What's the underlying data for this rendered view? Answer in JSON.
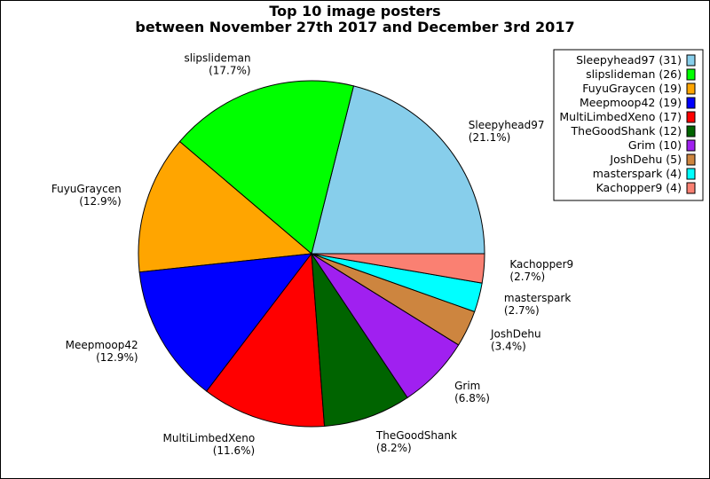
{
  "chart_data": {
    "type": "pie",
    "title": "Top 10 image posters",
    "subtitle": "between November 27th 2017 and December 3rd 2017",
    "slices": [
      {
        "name": "Sleepyhead97",
        "count": 31,
        "percent_label": "(21.1%)",
        "legend_label": "Sleepyhead97 (31)",
        "color": "#87ceeb"
      },
      {
        "name": "slipslideman",
        "count": 26,
        "percent_label": "(17.7%)",
        "legend_label": "slipslideman (26)",
        "color": "#00ff00"
      },
      {
        "name": "FuyuGraycen",
        "count": 19,
        "percent_label": "(12.9%)",
        "legend_label": "FuyuGraycen (19)",
        "color": "#ffa500"
      },
      {
        "name": "Meepmoop42",
        "count": 19,
        "percent_label": "(12.9%)",
        "legend_label": "Meepmoop42 (19)",
        "color": "#0000ff"
      },
      {
        "name": "MultiLimbedXeno",
        "count": 17,
        "percent_label": "(11.6%)",
        "legend_label": "MultiLimbedXeno (17)",
        "color": "#ff0000"
      },
      {
        "name": "TheGoodShank",
        "count": 12,
        "percent_label": "(8.2%)",
        "legend_label": "TheGoodShank (12)",
        "color": "#006400"
      },
      {
        "name": "Grim",
        "count": 10,
        "percent_label": "(6.8%)",
        "legend_label": "Grim (10)",
        "color": "#a020f0"
      },
      {
        "name": "JoshDehu",
        "count": 5,
        "percent_label": "(3.4%)",
        "legend_label": "JoshDehu (5)",
        "color": "#cd853f"
      },
      {
        "name": "masterspark",
        "count": 4,
        "percent_label": "(2.7%)",
        "legend_label": "masterspark (4)",
        "color": "#00ffff"
      },
      {
        "name": "Kachopper9",
        "count": 4,
        "percent_label": "(2.7%)",
        "legend_label": "Kachopper9 (4)",
        "color": "#fa8072"
      }
    ],
    "start_angle_deg": 0,
    "direction": "counterclockwise",
    "legend_position": "top-right"
  }
}
